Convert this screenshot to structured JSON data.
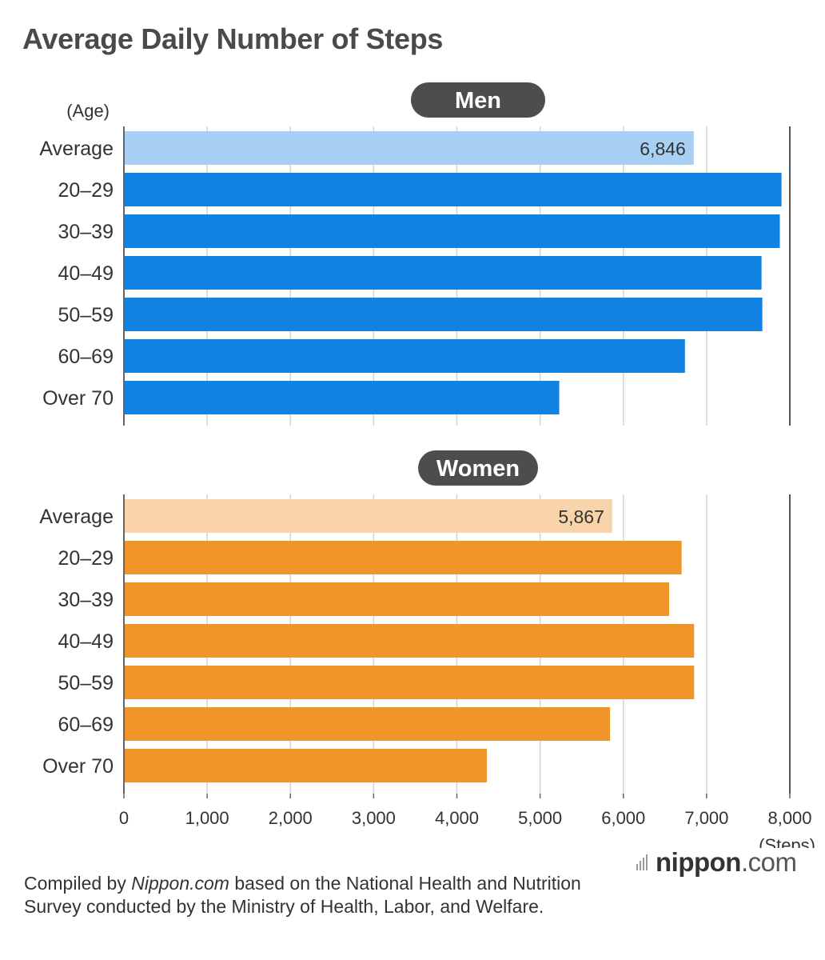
{
  "title": "Average Daily Number of Steps",
  "chart_data": {
    "type": "bar",
    "orientation": "horizontal",
    "categories": [
      "Average",
      "20–29",
      "30–39",
      "40–49",
      "50–59",
      "60–69",
      "Over 70"
    ],
    "category_axis_label": "(Age)",
    "value_axis_label": "(Steps)",
    "xlim": [
      0,
      8000
    ],
    "x_ticks": [
      0,
      1000,
      2000,
      3000,
      4000,
      5000,
      6000,
      7000,
      8000
    ],
    "x_tick_labels": [
      "0",
      "1,000",
      "2,000",
      "3,000",
      "4,000",
      "5,000",
      "6,000",
      "7,000",
      "8,000"
    ],
    "grid": true,
    "panels": [
      {
        "name": "Men",
        "values": [
          6846,
          7900,
          7880,
          7660,
          7670,
          6740,
          5230
        ],
        "value_labels": [
          "6,846",
          "",
          "",
          "",
          "",
          "",
          ""
        ],
        "average_color": "#a8d0f5",
        "bar_color": "#1181e2"
      },
      {
        "name": "Women",
        "values": [
          5867,
          6700,
          6550,
          6850,
          6850,
          5840,
          4360
        ],
        "value_labels": [
          "5,867",
          "",
          "",
          "",
          "",
          "",
          ""
        ],
        "average_color": "#f9d4ab",
        "bar_color": "#f0952a"
      }
    ]
  },
  "footnote": {
    "prefix": "Compiled by ",
    "source": "Nippon.com",
    "suffix": " based on the National Health and Nutrition Survey conducted by the Ministry of Health, Labor, and Welfare."
  },
  "logo": {
    "name": "nippon",
    "tld": ".com"
  },
  "colors": {
    "pill_background": "#4d4d4d",
    "pill_text": "#ffffff",
    "grid": "#d4d4d4",
    "axis": "#666666"
  }
}
